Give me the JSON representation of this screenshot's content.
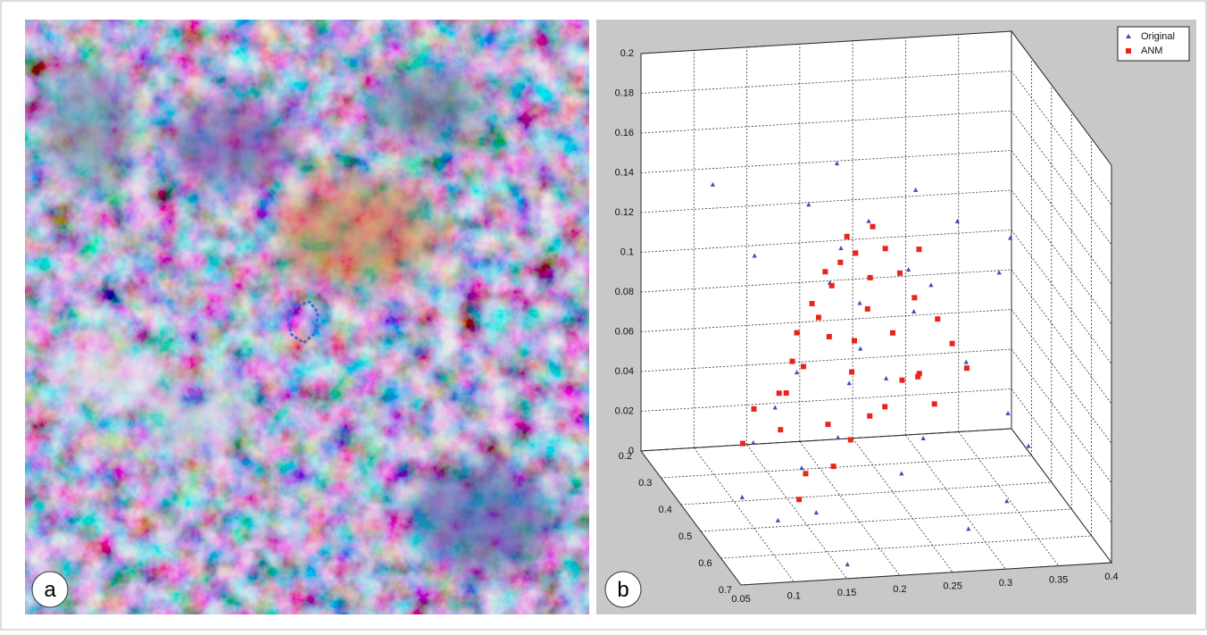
{
  "image_panel": {
    "label": "a"
  },
  "chart_data": {
    "type": "scatter3d",
    "panel_label": "b",
    "grid": true,
    "legend": "upper right",
    "xlim": [
      0.05,
      0.4
    ],
    "xticks": [
      0.05,
      0.1,
      0.15,
      0.2,
      0.25,
      0.3,
      0.35,
      0.4
    ],
    "ylim": [
      0.2,
      0.7
    ],
    "yticks": [
      0.2,
      0.3,
      0.4,
      0.5,
      0.6,
      0.7
    ],
    "zlim": [
      0,
      0.2
    ],
    "zticks": [
      0,
      0.02,
      0.04,
      0.06,
      0.08,
      0.1,
      0.12,
      0.14,
      0.16,
      0.18,
      0.2
    ],
    "series": [
      {
        "name": "Original",
        "color": "#3a4fb8",
        "marker": "triangle",
        "x": [
          0.07,
          0.09,
          0.12,
          0.15,
          0.18,
          0.2,
          0.22,
          0.25,
          0.28,
          0.3,
          0.33,
          0.36,
          0.38,
          0.1,
          0.13,
          0.17,
          0.19,
          0.21,
          0.24,
          0.27,
          0.29,
          0.31,
          0.34,
          0.16,
          0.14,
          0.23,
          0.26,
          0.11,
          0.08,
          0.32,
          0.35,
          0.2,
          0.18,
          0.22,
          0.28
        ],
        "y": [
          0.6,
          0.55,
          0.5,
          0.45,
          0.4,
          0.35,
          0.3,
          0.28,
          0.32,
          0.25,
          0.3,
          0.35,
          0.3,
          0.62,
          0.58,
          0.55,
          0.5,
          0.45,
          0.42,
          0.4,
          0.38,
          0.45,
          0.5,
          0.65,
          0.6,
          0.55,
          0.5,
          0.45,
          0.4,
          0.6,
          0.55,
          0.5,
          0.35,
          0.28,
          0.62
        ],
        "z": [
          0.03,
          0.05,
          0.06,
          0.07,
          0.09,
          0.1,
          0.11,
          0.12,
          0.1,
          0.13,
          0.12,
          0.1,
          0.11,
          0.02,
          0.04,
          0.05,
          0.07,
          0.08,
          0.06,
          0.09,
          0.1,
          0.07,
          0.05,
          0.0,
          0.02,
          0.03,
          0.04,
          0.13,
          0.16,
          0.02,
          0.04,
          0.11,
          0.14,
          0.15,
          0.01
        ]
      },
      {
        "name": "ANM",
        "color": "#e8241b",
        "marker": "square",
        "x": [
          0.08,
          0.1,
          0.12,
          0.14,
          0.15,
          0.17,
          0.18,
          0.19,
          0.2,
          0.21,
          0.22,
          0.23,
          0.24,
          0.25,
          0.26,
          0.27,
          0.28,
          0.29,
          0.3,
          0.31,
          0.32,
          0.12,
          0.13,
          0.16,
          0.18,
          0.2,
          0.22,
          0.24,
          0.26,
          0.14,
          0.16,
          0.19,
          0.21,
          0.23,
          0.25,
          0.27,
          0.11,
          0.17,
          0.2,
          0.28
        ],
        "y": [
          0.55,
          0.5,
          0.52,
          0.48,
          0.45,
          0.42,
          0.4,
          0.38,
          0.36,
          0.35,
          0.33,
          0.32,
          0.34,
          0.3,
          0.31,
          0.33,
          0.35,
          0.32,
          0.36,
          0.38,
          0.4,
          0.62,
          0.6,
          0.58,
          0.56,
          0.55,
          0.52,
          0.5,
          0.48,
          0.45,
          0.43,
          0.4,
          0.42,
          0.38,
          0.4,
          0.42,
          0.58,
          0.5,
          0.46,
          0.45
        ],
        "z": [
          0.05,
          0.06,
          0.07,
          0.08,
          0.09,
          0.1,
          0.09,
          0.11,
          0.1,
          0.11,
          0.12,
          0.11,
          0.1,
          0.12,
          0.11,
          0.1,
          0.09,
          0.11,
          0.08,
          0.07,
          0.06,
          0.03,
          0.04,
          0.04,
          0.05,
          0.06,
          0.06,
          0.07,
          0.07,
          0.06,
          0.07,
          0.08,
          0.08,
          0.09,
          0.08,
          0.06,
          0.06,
          0.05,
          0.07,
          0.05
        ]
      }
    ]
  }
}
